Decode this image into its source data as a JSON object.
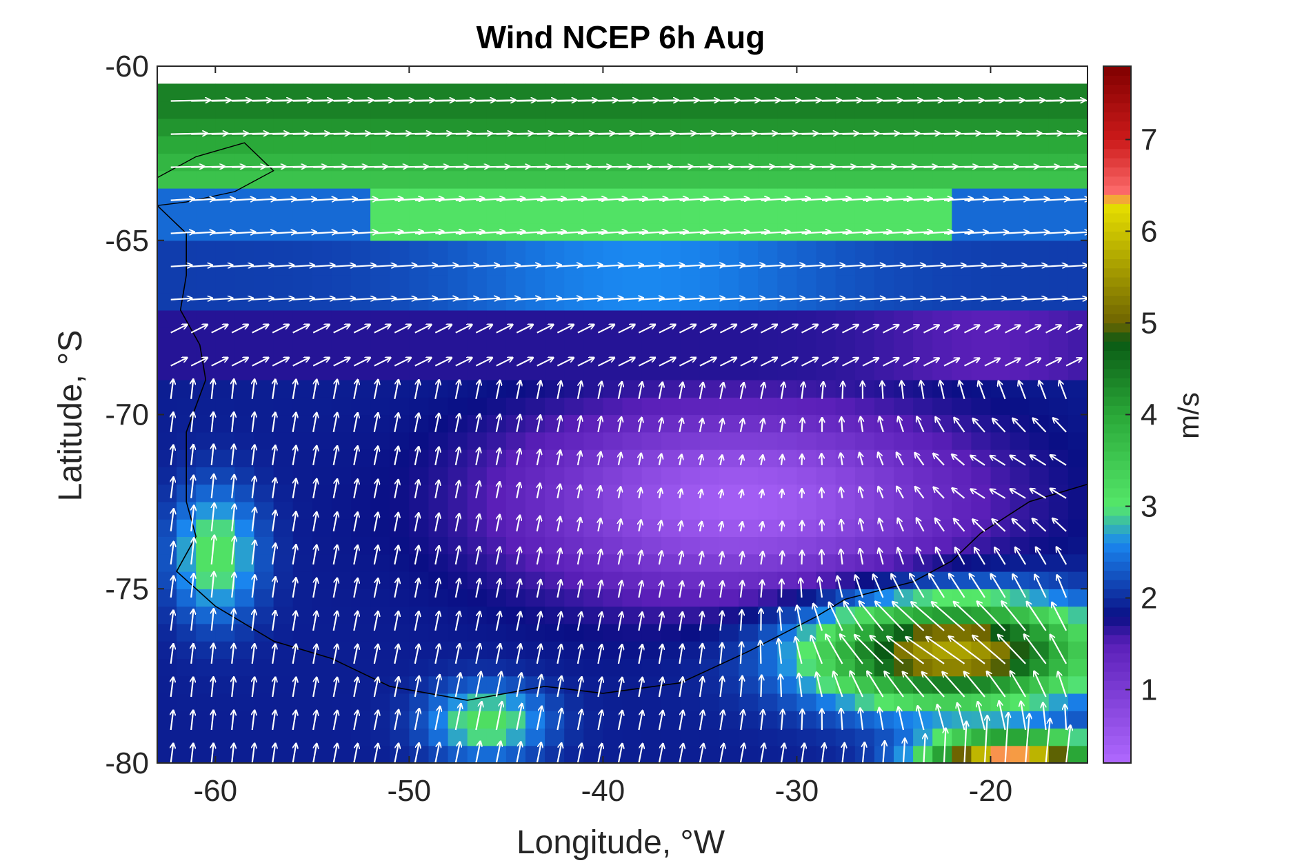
{
  "chart_data": {
    "type": "heatmap",
    "title": "Wind NCEP 6h Aug",
    "xlabel": "Longitude, °W",
    "ylabel": "Latitude, °S",
    "xlim": [
      -63,
      -15
    ],
    "ylim": [
      -80,
      -60
    ],
    "x_ticks": [
      -60,
      -50,
      -40,
      -30,
      -20
    ],
    "y_ticks": [
      -60,
      -65,
      -70,
      -75,
      -80
    ],
    "colorbar": {
      "label": "m/s",
      "range": [
        0.2,
        7.8
      ],
      "ticks": [
        1,
        2,
        3,
        4,
        5,
        6,
        7
      ]
    },
    "grid": false,
    "overlay": "wind vectors (white arrows) over wind speed field with coastline",
    "field_summary": [
      {
        "region": "lat -60.5 to -63.5 (all longitudes)",
        "speed_m_s": "3.5-4.8",
        "direction": "eastward"
      },
      {
        "region": "lat -63.5 to -67",
        "speed_m_s": "2.0-3.3",
        "direction": "eastward"
      },
      {
        "region": "lat -67 to -69",
        "speed_m_s": "1.5-2.0",
        "direction": "eastward to north-eastward"
      },
      {
        "region": "lat -70 to -74, lon -45 to -25",
        "speed_m_s": "0.3-1.0",
        "direction": "weak, westward in the east"
      },
      {
        "region": "lat -72 to -76, lon -62 to -57",
        "speed_m_s": "3.0-3.5",
        "direction": "northward"
      },
      {
        "region": "lat -75 to -78, lon -30 to -16",
        "speed_m_s": "4.5-6.2",
        "direction": "north-westward"
      },
      {
        "region": "lat -79.5 to -80, lon -23 to -16",
        "speed_m_s": "6.5-7.5",
        "direction": "north-westward"
      }
    ],
    "colors": {
      "lowest": "#b069ff",
      "purple": "#5a1fb8",
      "navy": "#0a0f85",
      "blue": "#1a88f0",
      "light_green": "#55e86a",
      "green": "#2aa838",
      "dark_green": "#0a5a14",
      "olive": "#6e6400",
      "yellow": "#e8e000",
      "pink": "#ff6f6f",
      "red": "#cc1a1a",
      "dark_red": "#800000"
    }
  }
}
